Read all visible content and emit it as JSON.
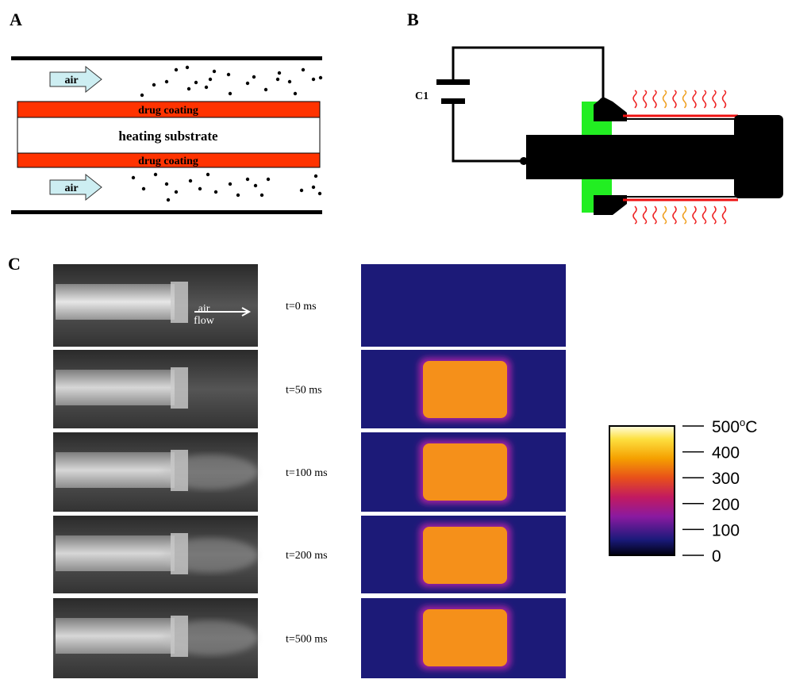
{
  "panel_a": {
    "label": "A",
    "air_labels": [
      "air",
      "air"
    ],
    "coating_labels": [
      "drug coating",
      "drug coating"
    ],
    "substrate_label": "heating substrate"
  },
  "panel_b": {
    "label": "B",
    "capacitor_label": "C1"
  },
  "panel_c": {
    "label": "C",
    "flow_label": [
      "air",
      "flow"
    ],
    "times": [
      "t=0 ms",
      "t=50 ms",
      "t=100 ms",
      "t=200 ms",
      "t=500 ms"
    ],
    "colorbar": {
      "lim": [
        0,
        500
      ],
      "ticks": [
        0,
        100,
        200,
        300,
        400,
        500
      ],
      "unit_sup": "o",
      "unit": "C"
    }
  }
}
